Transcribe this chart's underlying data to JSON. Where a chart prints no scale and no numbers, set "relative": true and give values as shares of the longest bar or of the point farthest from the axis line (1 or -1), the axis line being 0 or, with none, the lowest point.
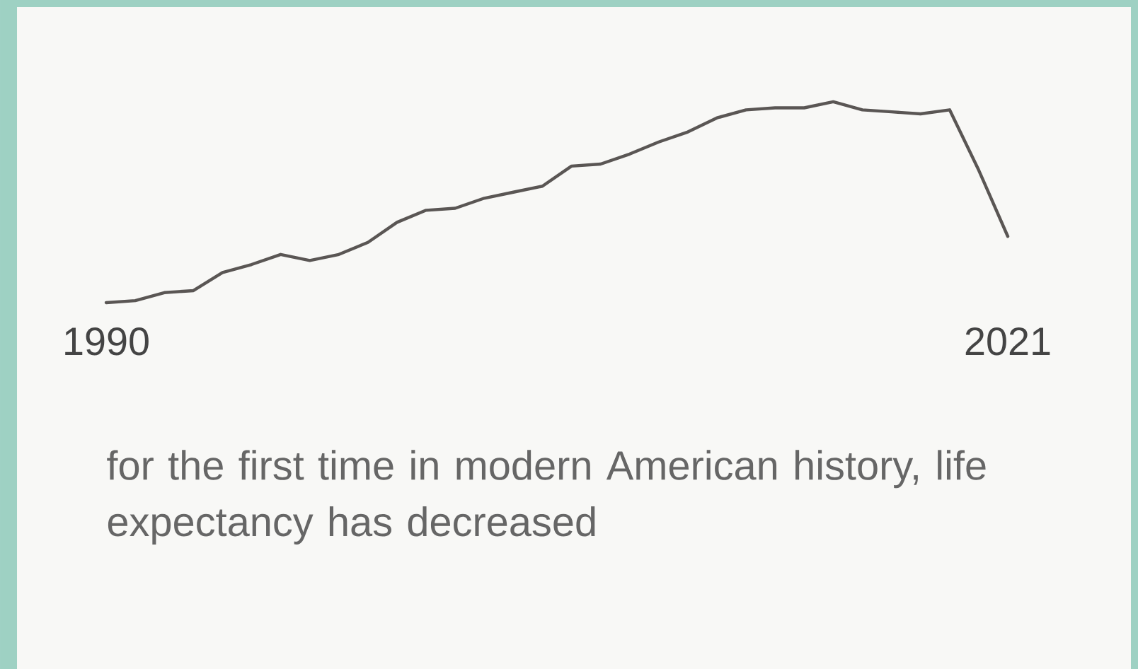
{
  "chart_data": {
    "type": "line",
    "relative": true,
    "color": "#5a5654",
    "x": [
      1990,
      1991,
      1992,
      1993,
      1994,
      1995,
      1996,
      1997,
      1998,
      1999,
      2000,
      2001,
      2002,
      2003,
      2004,
      2005,
      2006,
      2007,
      2008,
      2009,
      2010,
      2011,
      2012,
      2013,
      2014,
      2015,
      2016,
      2017,
      2018,
      2019,
      2020,
      2021
    ],
    "values": [
      0,
      0.01,
      0.05,
      0.06,
      0.15,
      0.19,
      0.24,
      0.21,
      0.24,
      0.3,
      0.4,
      0.46,
      0.47,
      0.52,
      0.55,
      0.58,
      0.68,
      0.69,
      0.74,
      0.8,
      0.85,
      0.92,
      0.96,
      0.97,
      0.97,
      1.0,
      0.96,
      0.95,
      0.94,
      0.96,
      0.66,
      0.33
    ],
    "xlim": [
      1990,
      2021
    ],
    "xticks": [
      1990,
      2021
    ],
    "marker": "none",
    "line_style": "solid",
    "annotations": [
      "for the first time in modern American history, life expectancy has decreased"
    ]
  }
}
